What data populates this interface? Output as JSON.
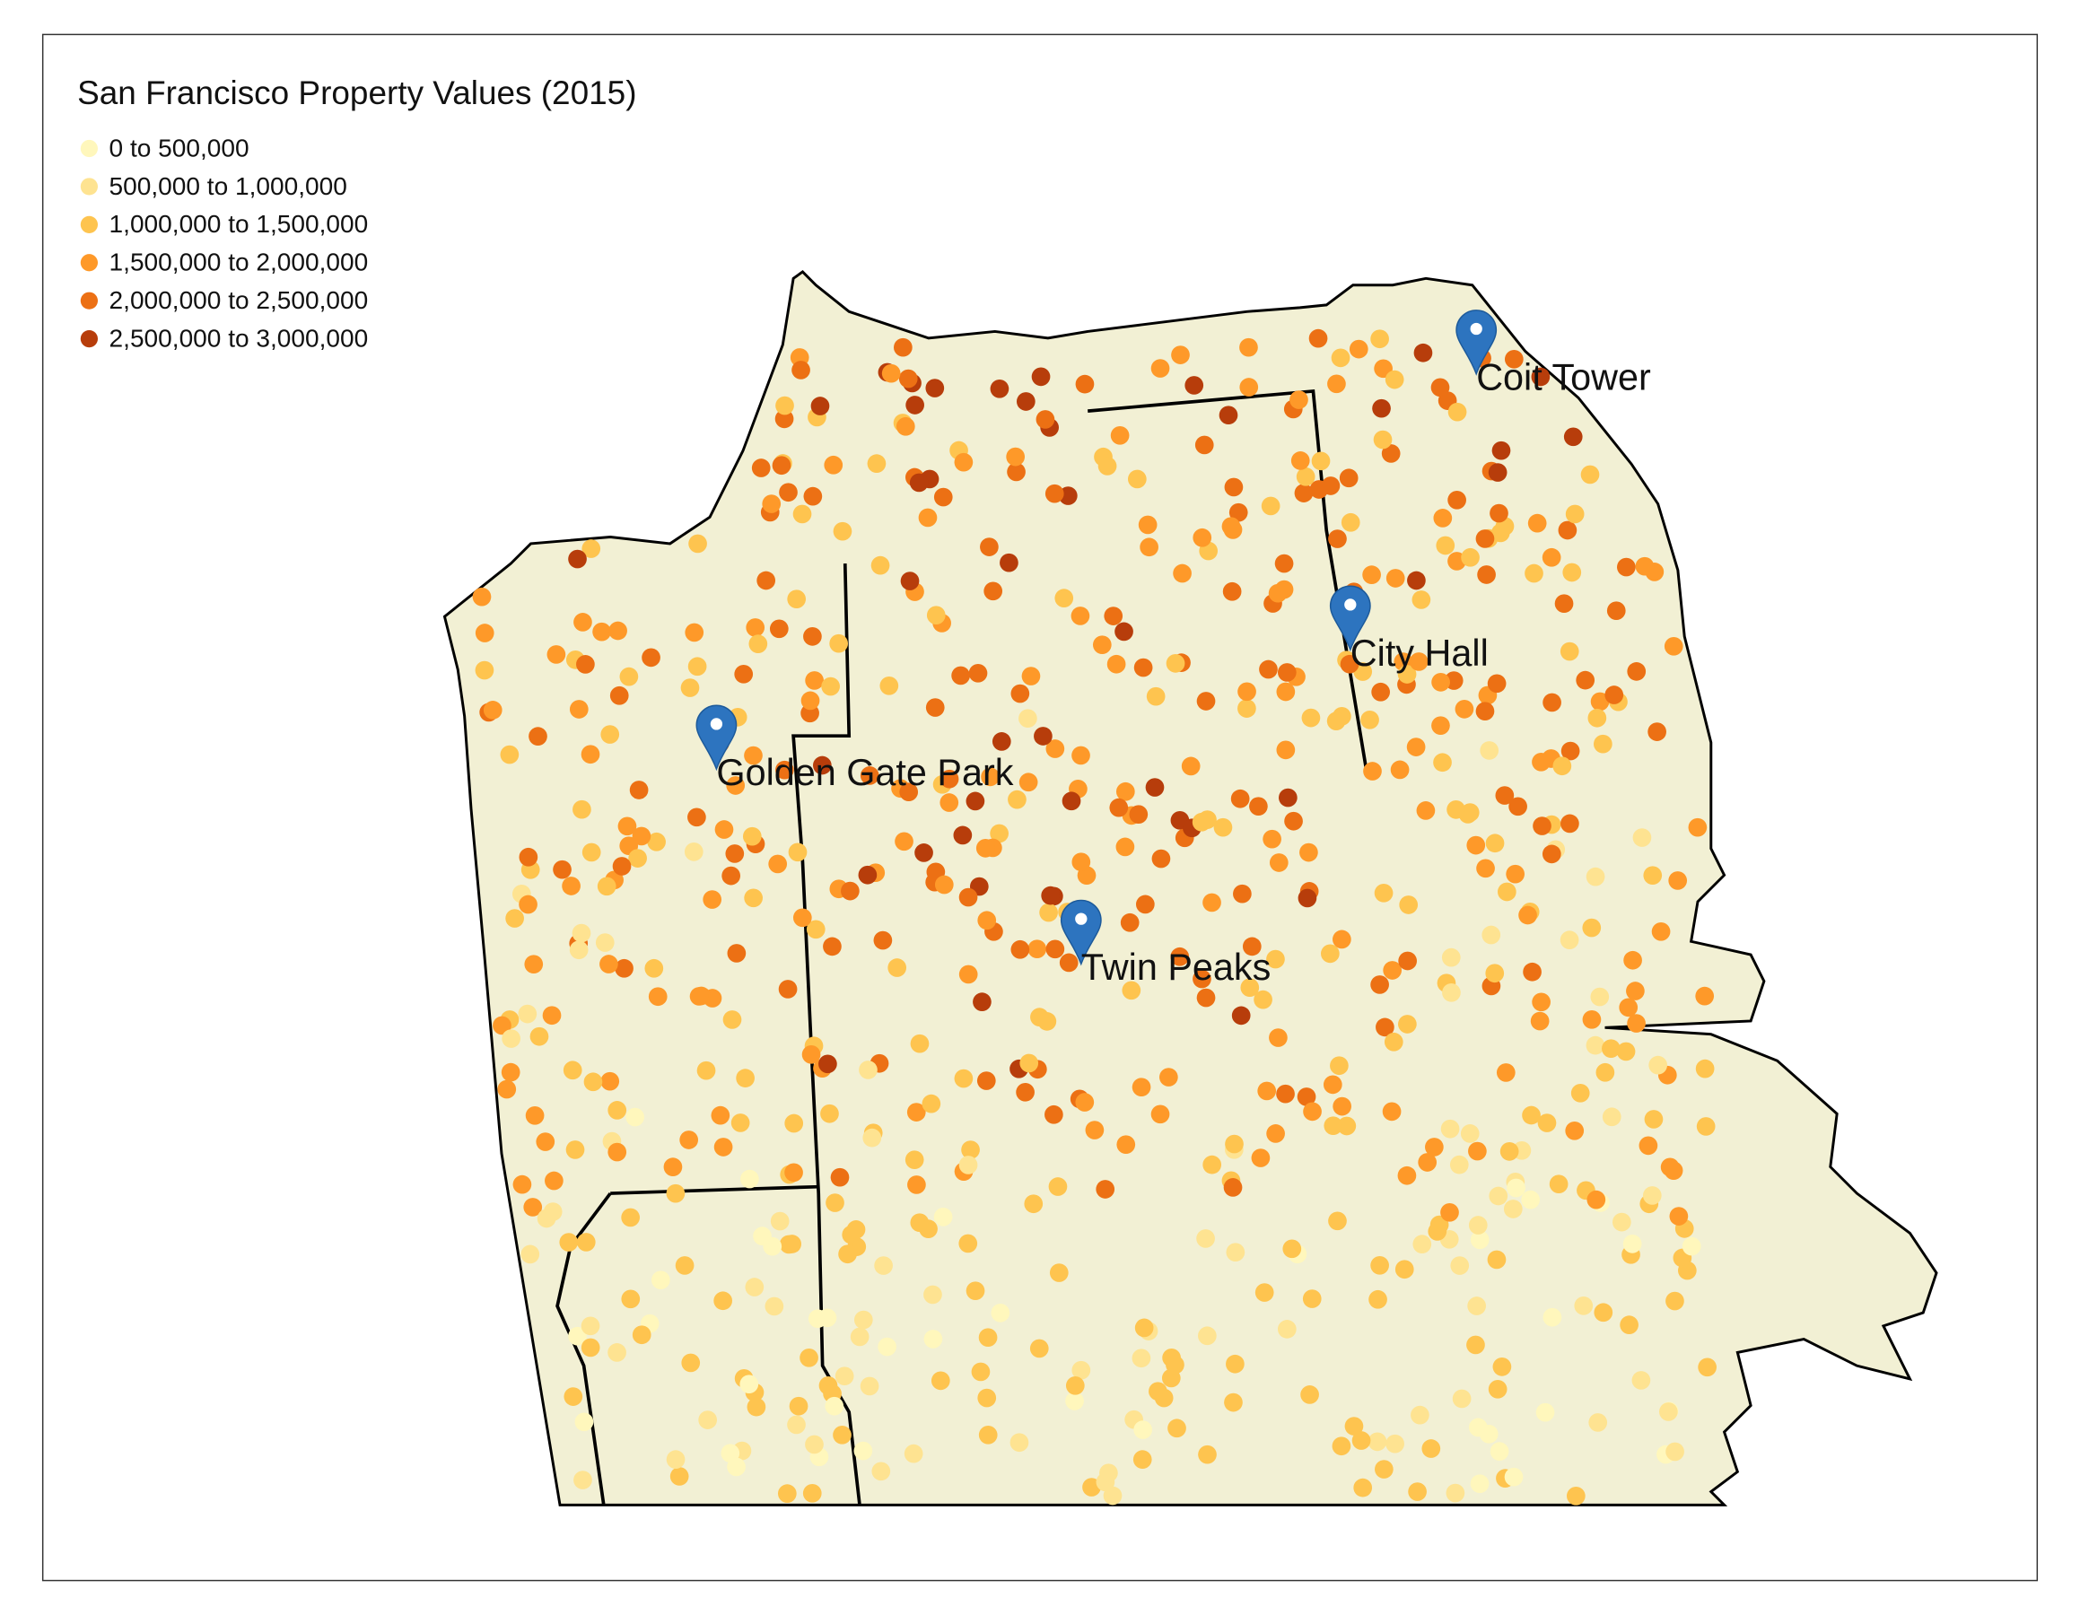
{
  "title": "San Francisco Property Values (2015)",
  "legend": [
    {
      "label": "0 to 500,000",
      "color": "#fff7bc"
    },
    {
      "label": "500,000 to 1,000,000",
      "color": "#fee391"
    },
    {
      "label": "1,000,000 to 1,500,000",
      "color": "#fec44f"
    },
    {
      "label": "1,500,000 to 2,000,000",
      "color": "#fe9929"
    },
    {
      "label": "2,000,000 to 2,500,000",
      "color": "#ec7014"
    },
    {
      "label": "2,500,000 to 3,000,000",
      "color": "#b73d0b"
    }
  ],
  "landmarks": [
    {
      "label": "Golden Gate Park"
    },
    {
      "label": "Twin Peaks"
    },
    {
      "label": "City Hall"
    },
    {
      "label": "Coit Tower"
    }
  ]
}
